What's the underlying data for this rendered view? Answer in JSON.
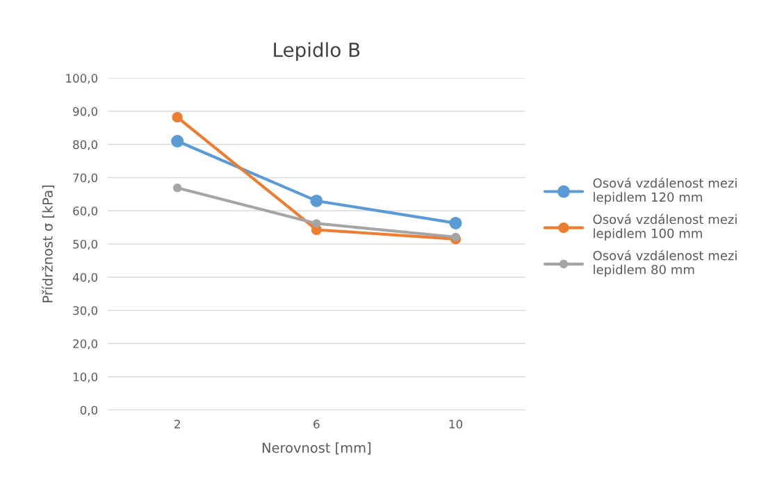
{
  "chart_data": {
    "type": "line",
    "title": "Lepidlo B",
    "xlabel": "Nerovnost [mm]",
    "ylabel": "Přídržnost σ [kPa]",
    "categories": [
      "2",
      "6",
      "10"
    ],
    "series": [
      {
        "name": "Osová vzdálenost mezi lepidlem 120 mm",
        "color": "#5b9bd5",
        "values": [
          81.0,
          63.0,
          56.3
        ]
      },
      {
        "name": "Osová vzdálenost mezi lepidlem 100 mm",
        "color": "#ed7d31",
        "values": [
          88.2,
          54.3,
          51.5
        ]
      },
      {
        "name": "Osová vzdálenost mezi lepidlem 80 mm",
        "color": "#a5a5a5",
        "values": [
          66.9,
          56.2,
          52.1
        ]
      }
    ],
    "ylim": [
      0,
      100
    ],
    "yticks": [
      {
        "value": 0,
        "label": "0,0"
      },
      {
        "value": 10,
        "label": "10,0"
      },
      {
        "value": 20,
        "label": "20,0"
      },
      {
        "value": 30,
        "label": "30,0"
      },
      {
        "value": 40,
        "label": "40,0"
      },
      {
        "value": 50,
        "label": "50,0"
      },
      {
        "value": 60,
        "label": "60,0"
      },
      {
        "value": 70,
        "label": "70,0"
      },
      {
        "value": 80,
        "label": "80,0"
      },
      {
        "value": 90,
        "label": "90,0"
      },
      {
        "value": 100,
        "label": "100,0"
      }
    ],
    "grid": "y",
    "legend": "right",
    "marker": "circle",
    "line_style": "solid"
  }
}
